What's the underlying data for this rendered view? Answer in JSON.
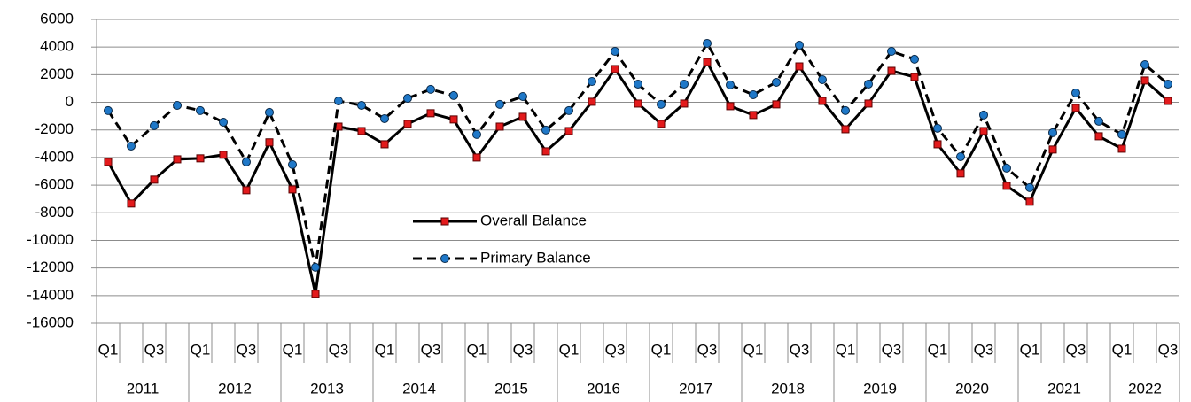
{
  "chart_data": {
    "type": "line",
    "categories": [
      "Q1",
      null,
      "Q3",
      null,
      "Q1",
      null,
      "Q3",
      null,
      "Q1",
      null,
      "Q3",
      null,
      "Q1",
      null,
      "Q3",
      null,
      "Q1",
      null,
      "Q3",
      null,
      "Q1",
      null,
      "Q3",
      null,
      "Q1",
      null,
      "Q3",
      null,
      "Q1",
      null,
      "Q3",
      null,
      "Q1",
      null,
      "Q3",
      null,
      "Q1",
      null,
      "Q3",
      null,
      "Q1",
      null,
      "Q3",
      null,
      "Q1",
      null,
      "Q3"
    ],
    "groups": [
      "2011",
      "2012",
      "2013",
      "2014",
      "2015",
      "2016",
      "2017",
      "2018",
      "2019",
      "2020",
      "2021",
      "2022"
    ],
    "series": [
      {
        "name": "Overall Balance",
        "color": "#e31a1c",
        "values": [
          -4320,
          -7330,
          -5600,
          -4130,
          -4060,
          -3800,
          -6370,
          -2900,
          -6310,
          -13870,
          -1760,
          -2080,
          -3040,
          -1560,
          -790,
          -1240,
          -4000,
          -1760,
          -1050,
          -3550,
          -2080,
          40,
          2410,
          -90,
          -1560,
          -90,
          2920,
          -280,
          -920,
          -150,
          2600,
          100,
          -1950,
          -90,
          2280,
          1830,
          -3040,
          -5150,
          -2080,
          -6050,
          -7200,
          -3420,
          -410,
          -2460,
          -3360,
          1580,
          100
        ]
      },
      {
        "name": "Primary Balance",
        "color": "#1f78c8",
        "values": [
          -600,
          -3170,
          -1690,
          -220,
          -600,
          -1440,
          -4320,
          -730,
          -4510,
          -11950,
          100,
          -220,
          -1180,
          290,
          940,
          490,
          -2330,
          -150,
          420,
          -2010,
          -600,
          1510,
          3690,
          1320,
          -150,
          1320,
          4270,
          1260,
          550,
          1450,
          4140,
          1640,
          -600,
          1320,
          3690,
          3120,
          -1880,
          -3940,
          -920,
          -4770,
          -6180,
          -2200,
          680,
          -1370,
          -2330,
          2730,
          1320
        ]
      }
    ],
    "ylim": [
      -16000,
      6000
    ],
    "yticks": [
      -16000,
      -14000,
      -12000,
      -10000,
      -8000,
      -6000,
      -4000,
      -2000,
      0,
      2000,
      4000,
      6000
    ],
    "grid": true
  }
}
